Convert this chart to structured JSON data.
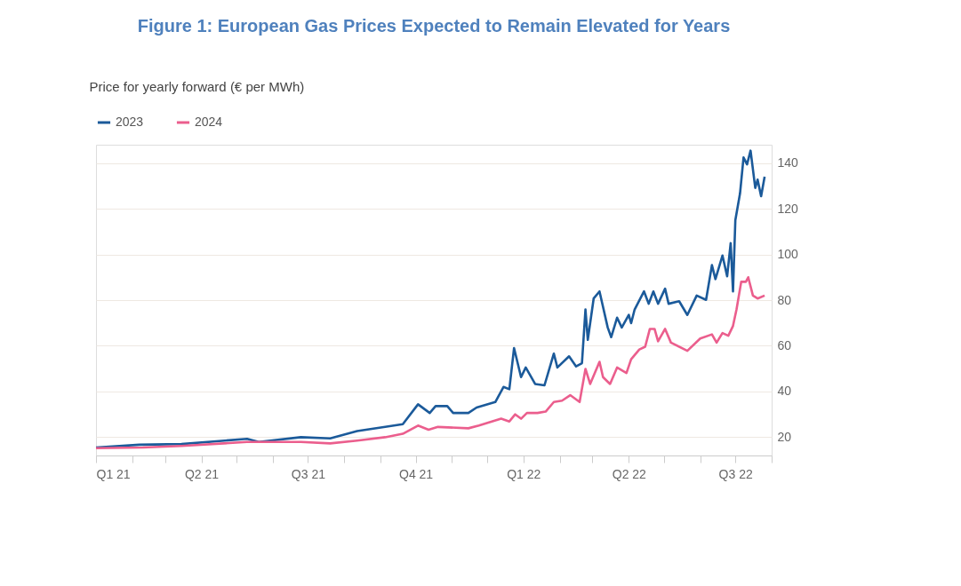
{
  "chart_data": {
    "type": "line",
    "title": "Figure 1: European Gas Prices Expected to Remain Elevated for Years",
    "ylabel": "Price for yearly forward (€ per MWh)",
    "xlim": [
      "2021-01-01",
      "2022-08-01"
    ],
    "xticks": [
      {
        "value": "2021-01-01",
        "label": "Q1 21"
      },
      {
        "value": "2021-02-01",
        "label": null
      },
      {
        "value": "2021-03-01",
        "label": null
      },
      {
        "value": "2021-04-01",
        "label": "Q2 21"
      },
      {
        "value": "2021-05-01",
        "label": null
      },
      {
        "value": "2021-06-01",
        "label": null
      },
      {
        "value": "2021-07-01",
        "label": "Q3 21"
      },
      {
        "value": "2021-08-01",
        "label": null
      },
      {
        "value": "2021-09-01",
        "label": null
      },
      {
        "value": "2021-10-01",
        "label": "Q4 21"
      },
      {
        "value": "2021-11-01",
        "label": null
      },
      {
        "value": "2021-12-01",
        "label": null
      },
      {
        "value": "2022-01-01",
        "label": "Q1 22"
      },
      {
        "value": "2022-02-01",
        "label": null
      },
      {
        "value": "2022-03-01",
        "label": null
      },
      {
        "value": "2022-04-01",
        "label": "Q2 22"
      },
      {
        "value": "2022-05-01",
        "label": null
      },
      {
        "value": "2022-06-01",
        "label": null
      },
      {
        "value": "2022-07-01",
        "label": "Q3 22"
      },
      {
        "value": "2022-08-01",
        "label": null
      }
    ],
    "ylim": [
      12,
      148
    ],
    "yticks": [
      20,
      40,
      60,
      80,
      100,
      120,
      140
    ],
    "grid": "y",
    "legend": "top left",
    "marker": "none",
    "line_style": "solid",
    "series": [
      {
        "name": "2023",
        "color": "#1b5a9a",
        "x": [
          "2021-01-01",
          "2021-02-07",
          "2021-03-15",
          "2021-05-10",
          "2021-05-20",
          "2021-06-25",
          "2021-07-20",
          "2021-08-12",
          "2021-09-05",
          "2021-09-20",
          "2021-10-03",
          "2021-10-13",
          "2021-10-18",
          "2021-10-28",
          "2021-11-02",
          "2021-11-15",
          "2021-11-22",
          "2021-12-08",
          "2021-12-15",
          "2021-12-20",
          "2021-12-24",
          "2021-12-30",
          "2022-01-03",
          "2022-01-11",
          "2022-01-19",
          "2022-01-27",
          "2022-01-30",
          "2022-02-09",
          "2022-02-15",
          "2022-02-20",
          "2022-02-23",
          "2022-02-25",
          "2022-03-02",
          "2022-03-07",
          "2022-03-14",
          "2022-03-17",
          "2022-03-22",
          "2022-03-26",
          "2022-04-01",
          "2022-04-03",
          "2022-04-06",
          "2022-04-14",
          "2022-04-18",
          "2022-04-22",
          "2022-04-26",
          "2022-05-02",
          "2022-05-05",
          "2022-05-14",
          "2022-05-21",
          "2022-05-29",
          "2022-06-06",
          "2022-06-11",
          "2022-06-14",
          "2022-06-20",
          "2022-06-24",
          "2022-06-27",
          "2022-06-29",
          "2022-07-01",
          "2022-07-05",
          "2022-07-08",
          "2022-07-11",
          "2022-07-14",
          "2022-07-18",
          "2022-07-20",
          "2022-07-23",
          "2022-07-26"
        ],
        "values": [
          15.5,
          16.7,
          17,
          19.3,
          17.9,
          20,
          19.5,
          22.7,
          24.5,
          25.7,
          34.4,
          30.6,
          33.6,
          33.6,
          30.6,
          30.6,
          33,
          35.4,
          42,
          41,
          59,
          46.3,
          50.5,
          43.3,
          42.7,
          56.6,
          50.5,
          55.4,
          51,
          52.4,
          75.9,
          62.6,
          80.7,
          83.8,
          68,
          63.8,
          72.3,
          68,
          73.5,
          69.9,
          75.9,
          83.8,
          78.4,
          83.8,
          78.4,
          85,
          78.4,
          79.5,
          73.5,
          82,
          80.1,
          95.3,
          89.2,
          99.5,
          90.4,
          104.9,
          83.8,
          115,
          126.7,
          142.4,
          139.4,
          145.4,
          129.1,
          132.7,
          125.5,
          134
        ]
      },
      {
        "name": "2024",
        "color": "#eb5e8d",
        "x": [
          "2021-01-01",
          "2021-02-10",
          "2021-03-15",
          "2021-05-10",
          "2021-06-25",
          "2021-07-20",
          "2021-08-12",
          "2021-09-05",
          "2021-09-20",
          "2021-10-03",
          "2021-10-12",
          "2021-10-20",
          "2021-11-15",
          "2021-11-24",
          "2021-12-13",
          "2021-12-20",
          "2021-12-25",
          "2021-12-30",
          "2022-01-04",
          "2022-01-13",
          "2022-01-20",
          "2022-01-27",
          "2022-02-03",
          "2022-02-10",
          "2022-02-18",
          "2022-02-23",
          "2022-02-27",
          "2022-03-07",
          "2022-03-10",
          "2022-03-16",
          "2022-03-22",
          "2022-03-30",
          "2022-04-03",
          "2022-04-10",
          "2022-04-15",
          "2022-04-19",
          "2022-04-23",
          "2022-04-26",
          "2022-05-02",
          "2022-05-07",
          "2022-05-21",
          "2022-06-01",
          "2022-06-11",
          "2022-06-15",
          "2022-06-20",
          "2022-06-25",
          "2022-06-29",
          "2022-07-02",
          "2022-07-06",
          "2022-07-10",
          "2022-07-12",
          "2022-07-16",
          "2022-07-20",
          "2022-07-26"
        ],
        "values": [
          15.2,
          15.5,
          16.2,
          17.9,
          17.9,
          17.3,
          18.5,
          20,
          21.5,
          25.1,
          23.3,
          24.5,
          23.9,
          25.1,
          28.1,
          26.9,
          30,
          28.1,
          30.6,
          30.6,
          31.2,
          35.4,
          36,
          38.4,
          35.4,
          49.9,
          43.3,
          53,
          46.3,
          43.3,
          50.5,
          48.1,
          54.1,
          58.4,
          59.6,
          67.4,
          67.4,
          62,
          67.4,
          61.4,
          57.8,
          63.2,
          65,
          61.4,
          65.6,
          64.4,
          68.7,
          75.9,
          88,
          88,
          90,
          82,
          80.7,
          82
        ]
      }
    ]
  }
}
